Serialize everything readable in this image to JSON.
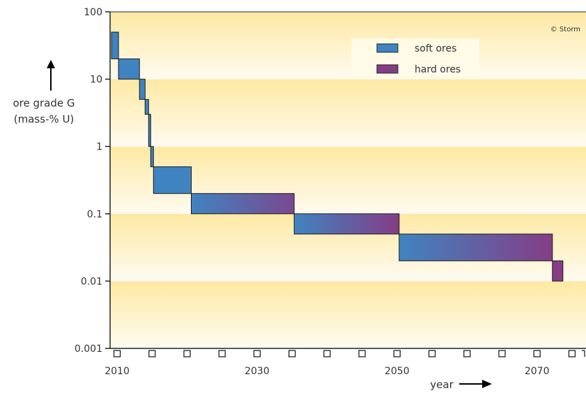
{
  "chart_data": {
    "type": "bar",
    "subtype": "step-blocks",
    "xlabel": "year",
    "ylabel": "ore grade G",
    "ylabel_unit": "(mass-% U)",
    "credit": "© Storm",
    "x_ticks": [
      2010,
      2030,
      2050,
      2070
    ],
    "y_ticks": [
      "0.001",
      "0.01",
      "0.1",
      "1",
      "10",
      "100"
    ],
    "y_tick_values": [
      0.001,
      0.01,
      0.1,
      1,
      10,
      100
    ],
    "xlim": [
      2009,
      2077
    ],
    "ylim": [
      0.001,
      100
    ],
    "y_scale": "log",
    "grid": false,
    "legend_position": "top-right",
    "legend": [
      {
        "name": "soft ores",
        "color": "#3f84c0"
      },
      {
        "name": "hard ores",
        "color": "#853d86"
      }
    ],
    "blocks": [
      {
        "x_start": 2009.2,
        "x_end": 2010.2,
        "g_low": 20,
        "g_high": 50,
        "hard_fraction_start": 0.0,
        "hard_fraction_end": 0.0
      },
      {
        "x_start": 2010.2,
        "x_end": 2013.2,
        "g_low": 10,
        "g_high": 20,
        "hard_fraction_start": 0.0,
        "hard_fraction_end": 0.0
      },
      {
        "x_start": 2013.2,
        "x_end": 2014.0,
        "g_low": 5,
        "g_high": 10,
        "hard_fraction_start": 0.0,
        "hard_fraction_end": 0.0
      },
      {
        "x_start": 2014.0,
        "x_end": 2014.5,
        "g_low": 3,
        "g_high": 5,
        "hard_fraction_start": 0.0,
        "hard_fraction_end": 0.0
      },
      {
        "x_start": 2014.5,
        "x_end": 2014.8,
        "g_low": 1,
        "g_high": 3,
        "hard_fraction_start": 0.0,
        "hard_fraction_end": 0.0
      },
      {
        "x_start": 2014.8,
        "x_end": 2015.2,
        "g_low": 0.5,
        "g_high": 1,
        "hard_fraction_start": 0.0,
        "hard_fraction_end": 0.0
      },
      {
        "x_start": 2015.2,
        "x_end": 2020.6,
        "g_low": 0.2,
        "g_high": 0.5,
        "hard_fraction_start": 0.0,
        "hard_fraction_end": 0.0
      },
      {
        "x_start": 2020.6,
        "x_end": 2035.3,
        "g_low": 0.1,
        "g_high": 0.2,
        "hard_fraction_start": 0.0,
        "hard_fraction_end": 0.85
      },
      {
        "x_start": 2035.3,
        "x_end": 2050.3,
        "g_low": 0.05,
        "g_high": 0.1,
        "hard_fraction_start": 0.0,
        "hard_fraction_end": 1.0
      },
      {
        "x_start": 2050.3,
        "x_end": 2072.2,
        "g_low": 0.02,
        "g_high": 0.05,
        "hard_fraction_start": 0.0,
        "hard_fraction_end": 1.0
      },
      {
        "x_start": 2072.2,
        "x_end": 2073.7,
        "g_low": 0.01,
        "g_high": 0.02,
        "hard_fraction_start": 1.0,
        "hard_fraction_end": 1.0
      }
    ]
  }
}
